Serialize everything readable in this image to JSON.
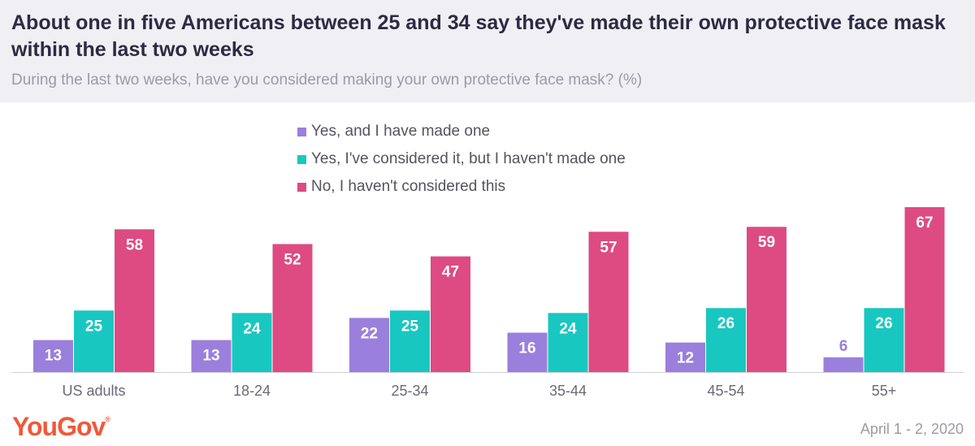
{
  "header": {
    "title": "About one in five Americans between 25 and 34 say they've made their own protective face mask within the last two weeks",
    "subtitle": "During the last two weeks, have you considered making your own protective face mask? (%)"
  },
  "colors": {
    "made": "#9b7fdc",
    "considered": "#19c7c1",
    "not_considered": "#dd4b82"
  },
  "chart_data": {
    "type": "bar",
    "title": "About one in five Americans between 25 and 34 say they've made their own protective face mask within the last two weeks",
    "subtitle": "During the last two weeks, have you considered making your own protective face mask? (%)",
    "categories": [
      "US adults",
      "18-24",
      "25-34",
      "35-44",
      "45-54",
      "55+"
    ],
    "series": [
      {
        "name": "Yes, and I have made one",
        "values": [
          13,
          13,
          22,
          16,
          12,
          6
        ]
      },
      {
        "name": "Yes, I've considered it, but I haven't made one",
        "values": [
          25,
          24,
          25,
          24,
          26,
          26
        ]
      },
      {
        "name": "No, I haven't considered this",
        "values": [
          58,
          52,
          47,
          57,
          59,
          67
        ]
      }
    ],
    "ylim": [
      0,
      67
    ],
    "legend": "top-center",
    "grid": false
  },
  "footer": {
    "brand": "YouGov",
    "brand_mark": "®",
    "date": "April 1 - 2, 2020"
  }
}
